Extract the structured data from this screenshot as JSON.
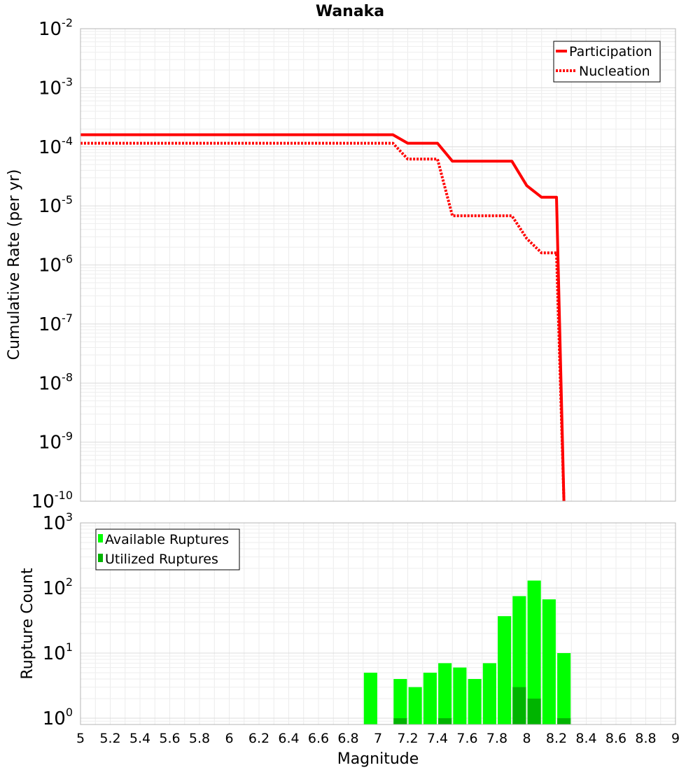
{
  "title": "Wanaka",
  "chart_data": [
    {
      "type": "line",
      "title": "Wanaka",
      "xlabel": "Magnitude",
      "ylabel": "Cumulative Rate (per yr)",
      "yscale": "log",
      "xlim": [
        5,
        9
      ],
      "ylim": [
        1e-10,
        0.01
      ],
      "y_ticks": [
        {
          "base": "10",
          "exp": "-10",
          "value": 1e-10
        },
        {
          "base": "10",
          "exp": "-9",
          "value": 1e-09
        },
        {
          "base": "10",
          "exp": "-8",
          "value": 1e-08
        },
        {
          "base": "10",
          "exp": "-7",
          "value": 1e-07
        },
        {
          "base": "10",
          "exp": "-6",
          "value": 1e-06
        },
        {
          "base": "10",
          "exp": "-5",
          "value": 1e-05
        },
        {
          "base": "10",
          "exp": "-4",
          "value": 0.0001
        },
        {
          "base": "10",
          "exp": "-3",
          "value": 0.001
        },
        {
          "base": "10",
          "exp": "-2",
          "value": 0.01
        }
      ],
      "legend": {
        "placement": "top-right"
      },
      "series": [
        {
          "name": "Participation",
          "style": "solid",
          "color": "#ff0000",
          "x": [
            5.0,
            7.1,
            7.2,
            7.4,
            7.5,
            7.9,
            8.0,
            8.1,
            8.2,
            8.25
          ],
          "y": [
            0.00016,
            0.00016,
            0.000115,
            0.000115,
            5.7e-05,
            5.7e-05,
            2.2e-05,
            1.4e-05,
            1.4e-05,
            1e-10
          ]
        },
        {
          "name": "Nucleation",
          "style": "dotted",
          "color": "#ff0000",
          "x": [
            5.0,
            7.1,
            7.2,
            7.4,
            7.5,
            7.9,
            8.0,
            8.1,
            8.2,
            8.25
          ],
          "y": [
            0.000115,
            0.000115,
            6.2e-05,
            6.2e-05,
            6.8e-06,
            6.8e-06,
            2.8e-06,
            1.6e-06,
            1.6e-06,
            1e-10
          ]
        }
      ]
    },
    {
      "type": "bar",
      "xlabel": "Magnitude",
      "ylabel": "Rupture Count",
      "yscale": "log",
      "xlim": [
        5,
        9
      ],
      "ylim": [
        0.8,
        1000
      ],
      "bar_width": 0.09,
      "x_ticks": [
        "5",
        "5.2",
        "5.4",
        "5.6",
        "5.8",
        "6",
        "6.2",
        "6.4",
        "6.6",
        "6.8",
        "7",
        "7.2",
        "7.4",
        "7.6",
        "7.8",
        "8",
        "8.2",
        "8.4",
        "8.6",
        "8.8",
        "9"
      ],
      "y_ticks": [
        {
          "base": "10",
          "exp": "0",
          "value": 1
        },
        {
          "base": "10",
          "exp": "1",
          "value": 10
        },
        {
          "base": "10",
          "exp": "2",
          "value": 100
        },
        {
          "base": "10",
          "exp": "3",
          "value": 1000
        }
      ],
      "legend": {
        "placement": "top-left"
      },
      "series": [
        {
          "name": "Available Ruptures",
          "color": "#00ff00",
          "x": [
            6.95,
            7.15,
            7.25,
            7.35,
            7.45,
            7.55,
            7.65,
            7.75,
            7.85,
            7.95,
            8.05,
            8.15,
            8.25
          ],
          "values": [
            5,
            4,
            3,
            5,
            7,
            6,
            4,
            7,
            37,
            75,
            130,
            67,
            10
          ]
        },
        {
          "name": "Utilized Ruptures",
          "color": "#00b400",
          "x": [
            7.15,
            7.45,
            7.95,
            8.05,
            8.25
          ],
          "values": [
            1,
            1,
            3,
            2,
            1
          ]
        }
      ]
    }
  ]
}
